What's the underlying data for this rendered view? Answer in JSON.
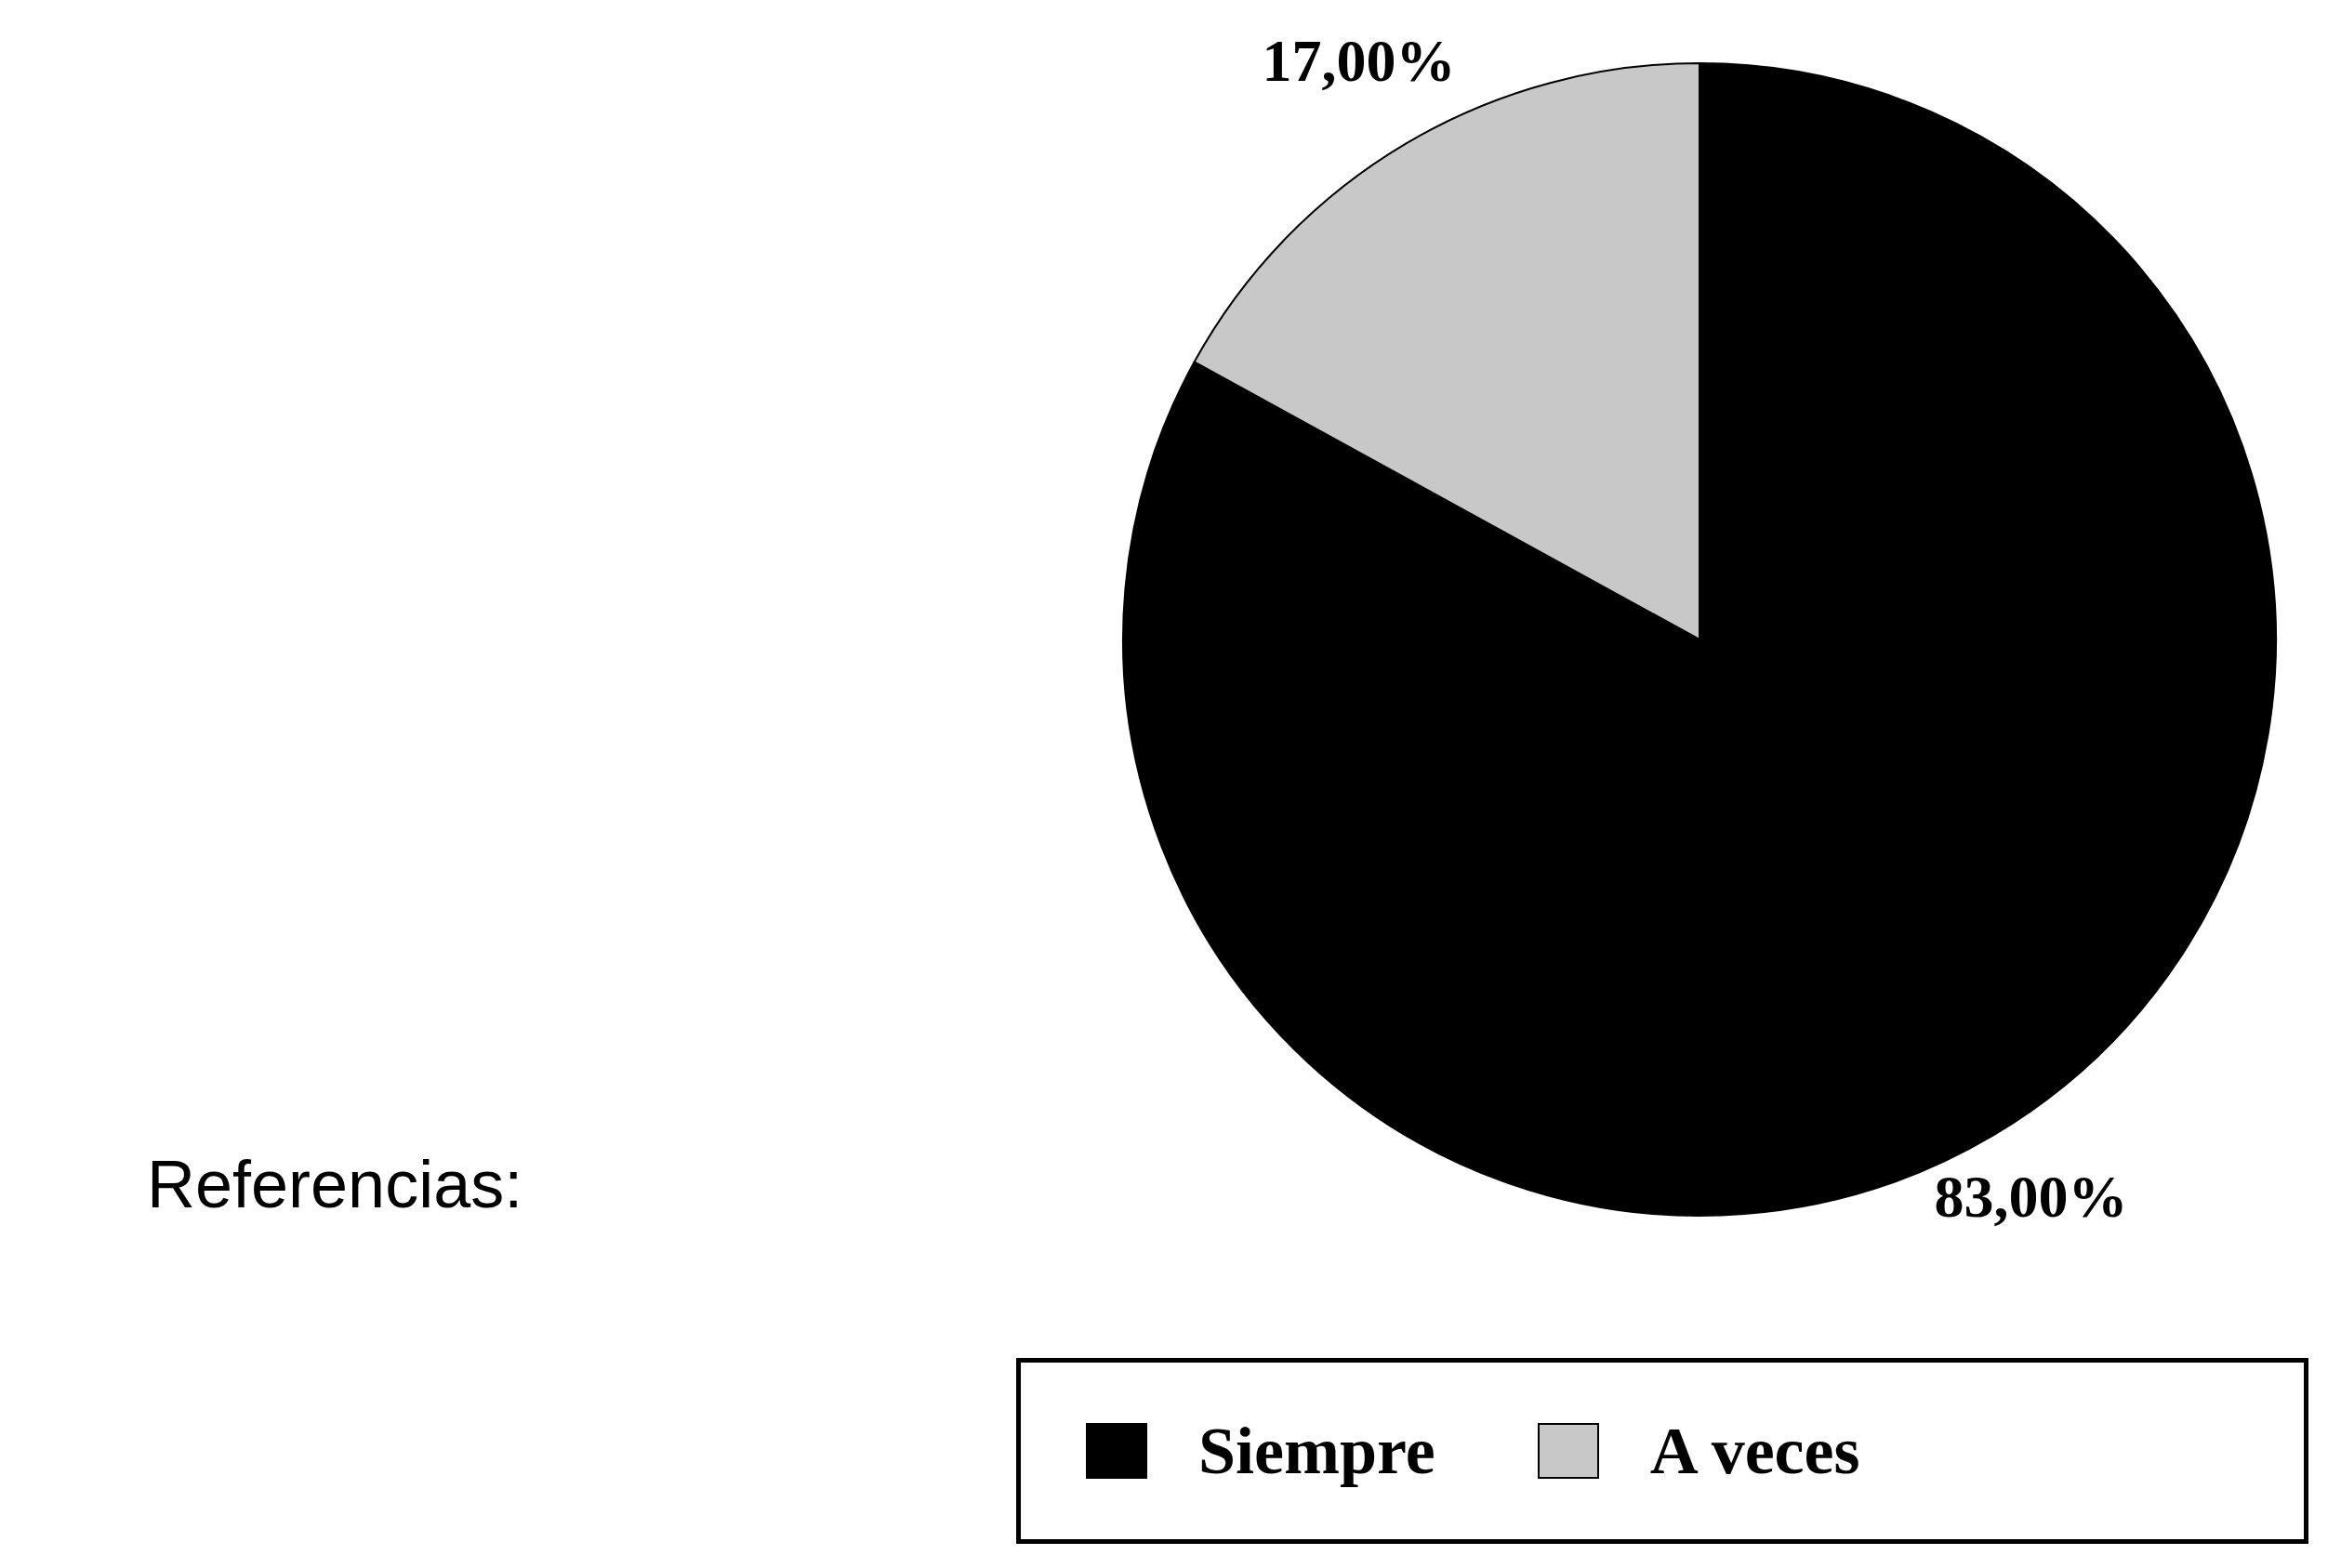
{
  "chart_data": {
    "type": "pie",
    "legend_title": "Referencias:",
    "categories": [
      "Siempre",
      "A veces"
    ],
    "values": [
      83,
      17
    ],
    "colors": [
      "#000000",
      "#c8c8c8"
    ],
    "value_labels": [
      "83,00%",
      "17,00%"
    ],
    "legend": "bottom"
  }
}
